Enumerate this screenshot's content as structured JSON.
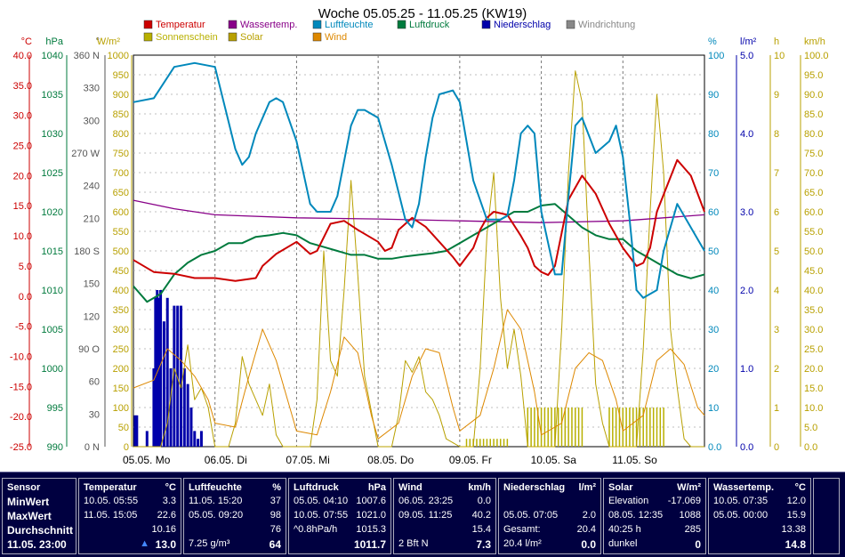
{
  "chart_data": {
    "type": "line",
    "title": "Woche 05.05.25 - 11.05.25 (KW19)",
    "x_ticks": [
      "05.05. Mo",
      "06.05. Di",
      "07.05. Mi",
      "08.05. Do",
      "09.05. Fr",
      "10.05. Sa",
      "11.05. So"
    ],
    "x_range_hours": [
      0,
      168
    ],
    "grid": true,
    "legend": [
      {
        "label": "Temperatur",
        "color": "#cc0000"
      },
      {
        "label": "Wassertemp.",
        "color": "#880088"
      },
      {
        "label": "Luftfeuchte",
        "color": "#0088bb"
      },
      {
        "label": "Luftdruck",
        "color": "#007a3d"
      },
      {
        "label": "Niederschlag",
        "color": "#0000aa"
      },
      {
        "label": "Windrichtung",
        "color": "#888888"
      },
      {
        "label": "Sonnenschein",
        "color": "#b8b000"
      },
      {
        "label": "Solar",
        "color": "#b8a000"
      },
      {
        "label": "Wind",
        "color": "#dd8800"
      }
    ],
    "axes_left": [
      {
        "unit": "°C",
        "color": "#cc0000",
        "ticks": [
          "40.0",
          "35.0",
          "30.0",
          "25.0",
          "20.0",
          "15.0",
          "10.0",
          "5.0",
          "0.0",
          "-5.0",
          "-10.0",
          "-15.0",
          "-20.0",
          "-25.0"
        ],
        "range": [
          -25,
          40
        ]
      },
      {
        "unit": "hPa",
        "color": "#007a3d",
        "ticks": [
          "1040",
          "1035",
          "1030",
          "1025",
          "1020",
          "1015",
          "1010",
          "1005",
          "1000",
          "995",
          "990"
        ],
        "range": [
          990,
          1040
        ]
      },
      {
        "unit": "°",
        "color": "#555555",
        "ticks": [
          "360 N",
          "330",
          "300",
          "270 W",
          "240",
          "210",
          "180 S",
          "150",
          "120",
          "90 O",
          "60",
          "30",
          "0 N"
        ],
        "range": [
          0,
          360
        ]
      },
      {
        "unit": "W/m²",
        "color": "#b8a000",
        "ticks": [
          "1000",
          "950",
          "900",
          "850",
          "800",
          "750",
          "700",
          "650",
          "600",
          "550",
          "500",
          "450",
          "400",
          "350",
          "300",
          "250",
          "200",
          "150",
          "100",
          "50",
          "0"
        ],
        "range": [
          0,
          1000
        ]
      }
    ],
    "axes_right": [
      {
        "unit": "%",
        "color": "#0088bb",
        "ticks": [
          "100",
          "90",
          "80",
          "70",
          "60",
          "50",
          "40",
          "30",
          "20",
          "10",
          "0.0"
        ],
        "range": [
          0,
          100
        ]
      },
      {
        "unit": "l/m²",
        "color": "#0000aa",
        "ticks": [
          "5.0",
          "4.0",
          "3.0",
          "2.0",
          "1.0",
          "0.0"
        ],
        "range": [
          0,
          5
        ]
      },
      {
        "unit": "h",
        "color": "#b8a000",
        "ticks": [
          "10",
          "9",
          "8",
          "7",
          "6",
          "5",
          "4",
          "3",
          "2",
          "1",
          "0"
        ],
        "range": [
          0,
          10
        ]
      },
      {
        "unit": "km/h",
        "color": "#b8a000",
        "ticks": [
          "100.0",
          "95.0",
          "90.0",
          "85.0",
          "80.0",
          "75.0",
          "70.0",
          "65.0",
          "60.0",
          "55.0",
          "50.0",
          "45.0",
          "40.0",
          "35.0",
          "30.0",
          "25.0",
          "20.0",
          "15.0",
          "10.0",
          "5.0",
          "0.0"
        ],
        "range": [
          0,
          100
        ]
      }
    ],
    "series": [
      {
        "name": "Temperatur",
        "unit": "°C",
        "axis": 0,
        "x": [
          0,
          6,
          12,
          18,
          24,
          30,
          36,
          38,
          42,
          48,
          52,
          54,
          58,
          62,
          66,
          72,
          74,
          76,
          78,
          82,
          86,
          90,
          94,
          96,
          100,
          102,
          104,
          106,
          110,
          114,
          116,
          118,
          120,
          122,
          124,
          128,
          132,
          136,
          140,
          144,
          148,
          150,
          152,
          154,
          160,
          164,
          168
        ],
        "y": [
          6,
          4,
          3.7,
          3,
          3,
          2.5,
          3,
          5,
          7,
          9,
          7,
          7.5,
          12,
          12.5,
          11,
          9,
          7.5,
          8,
          11,
          13,
          11.5,
          9,
          6.5,
          5,
          8,
          11,
          13,
          14,
          13.5,
          10,
          8,
          5,
          4,
          3.5,
          5,
          16,
          20,
          17,
          12,
          8,
          5,
          5.5,
          8,
          14,
          22.6,
          20,
          14
        ]
      },
      {
        "name": "Wassertemp.",
        "unit": "°C",
        "axis": 0,
        "x": [
          0,
          12,
          24,
          48,
          72,
          96,
          120,
          144,
          156,
          168
        ],
        "y": [
          15.9,
          14.5,
          13.5,
          13,
          12.8,
          12.5,
          12.2,
          12.5,
          13,
          13.5
        ]
      },
      {
        "name": "Luftfeuchte",
        "unit": "%",
        "axis": 4,
        "x": [
          0,
          6,
          12,
          18,
          24,
          30,
          32,
          34,
          36,
          40,
          42,
          44,
          48,
          52,
          54,
          58,
          60,
          64,
          66,
          68,
          70,
          72,
          76,
          80,
          82,
          84,
          86,
          88,
          90,
          94,
          96,
          100,
          104,
          108,
          110,
          112,
          114,
          116,
          118,
          120,
          124,
          126,
          128,
          130,
          132,
          136,
          140,
          142,
          144,
          146,
          148,
          150,
          154,
          156,
          160,
          164,
          168
        ],
        "y": [
          88,
          89,
          97,
          98,
          97,
          76,
          72,
          74,
          80,
          88,
          89,
          88,
          78,
          62,
          60,
          60,
          64,
          82,
          86,
          86,
          85,
          84,
          72,
          58,
          56,
          62,
          74,
          84,
          90,
          91,
          88,
          68,
          58,
          58,
          59,
          68,
          80,
          82,
          80,
          60,
          44,
          44,
          64,
          82,
          84,
          75,
          78,
          82,
          74,
          58,
          40,
          38,
          40,
          50,
          62,
          56,
          50
        ]
      },
      {
        "name": "Luftdruck",
        "unit": "hPa",
        "axis": 1,
        "x": [
          0,
          4,
          8,
          12,
          16,
          20,
          24,
          28,
          32,
          36,
          40,
          44,
          48,
          52,
          56,
          60,
          64,
          68,
          72,
          76,
          80,
          84,
          88,
          92,
          96,
          100,
          104,
          108,
          112,
          116,
          120,
          124,
          128,
          132,
          136,
          140,
          144,
          148,
          152,
          156,
          160,
          164,
          168
        ],
        "y": [
          1010.5,
          1008.5,
          1009.5,
          1012,
          1013.5,
          1014.5,
          1015,
          1016,
          1016,
          1016.8,
          1017,
          1017.3,
          1017,
          1016,
          1015.5,
          1015,
          1014.5,
          1014.5,
          1014,
          1014,
          1014.3,
          1014.5,
          1014.7,
          1015,
          1016,
          1017,
          1018,
          1019,
          1020,
          1020,
          1020.8,
          1021,
          1019.5,
          1018,
          1017,
          1016.5,
          1016.5,
          1015,
          1014,
          1013,
          1012,
          1011.5,
          1012
        ]
      },
      {
        "name": "Solar",
        "unit": "W/m²",
        "axis": 3,
        "x": [
          0,
          4,
          8,
          10,
          12,
          14,
          16,
          18,
          20,
          22,
          24,
          26,
          28,
          30,
          32,
          34,
          36,
          38,
          40,
          42,
          44,
          48,
          52,
          54,
          56,
          58,
          60,
          62,
          64,
          66,
          68,
          72,
          76,
          78,
          80,
          82,
          84,
          86,
          88,
          90,
          92,
          96,
          100,
          102,
          104,
          106,
          108,
          110,
          112,
          114,
          116,
          120,
          124,
          126,
          128,
          130,
          132,
          134,
          136,
          138,
          140,
          144,
          148,
          150,
          152,
          154,
          156,
          158,
          160,
          162,
          164,
          168
        ],
        "y": [
          0,
          0,
          0,
          60,
          200,
          150,
          260,
          120,
          150,
          100,
          0,
          0,
          0,
          60,
          230,
          160,
          120,
          80,
          160,
          30,
          0,
          0,
          0,
          120,
          500,
          220,
          180,
          400,
          680,
          440,
          180,
          0,
          0,
          80,
          220,
          190,
          230,
          140,
          120,
          80,
          20,
          0,
          0,
          200,
          540,
          700,
          380,
          200,
          300,
          180,
          0,
          0,
          0,
          300,
          700,
          960,
          880,
          500,
          160,
          60,
          0,
          0,
          0,
          250,
          600,
          900,
          700,
          300,
          150,
          20,
          0,
          0
        ]
      },
      {
        "name": "Wind",
        "unit": "km/h",
        "axis": 7,
        "x": [
          0,
          6,
          10,
          14,
          18,
          22,
          24,
          30,
          34,
          38,
          42,
          46,
          48,
          54,
          58,
          62,
          66,
          70,
          72,
          78,
          82,
          86,
          90,
          94,
          96,
          102,
          106,
          110,
          114,
          118,
          120,
          126,
          130,
          134,
          138,
          142,
          144,
          150,
          154,
          158,
          162,
          166,
          168
        ],
        "y": [
          15,
          17,
          25,
          22,
          18,
          12,
          6,
          5,
          18,
          30,
          22,
          10,
          4,
          3,
          14,
          28,
          24,
          8,
          2,
          6,
          18,
          25,
          24,
          10,
          4,
          8,
          20,
          35,
          30,
          14,
          3,
          6,
          20,
          24,
          22,
          12,
          4,
          8,
          22,
          25,
          21,
          10,
          8
        ]
      },
      {
        "name": "Sonnenschein",
        "unit": "h",
        "axis": 6,
        "x": [
          0,
          24,
          48,
          72,
          96,
          120,
          144,
          168
        ],
        "y": [
          0,
          0,
          0,
          0,
          0,
          0,
          0,
          0
        ]
      }
    ],
    "niederschlag": {
      "unit": "l/m²",
      "x": [
        0.5,
        1,
        4,
        6,
        6.5,
        7,
        7.5,
        8,
        9,
        10,
        11,
        12,
        13,
        14,
        15,
        16,
        17,
        18,
        19,
        20
      ],
      "y": [
        0.4,
        0.4,
        0.2,
        1.0,
        1.9,
        2.0,
        1.9,
        2.0,
        1.6,
        1.9,
        1.0,
        1.8,
        1.8,
        1.8,
        1.0,
        0.8,
        0.5,
        0.2,
        0.1,
        0.2
      ]
    },
    "sonnenschein_bars": {
      "unit": "h",
      "ranges": [
        [
          98,
          110
        ],
        [
          116,
          132
        ],
        [
          140,
          156
        ]
      ],
      "levels": [
        0.2,
        1.0,
        1.0
      ]
    }
  },
  "summary": {
    "sensor": {
      "header": "Sensor",
      "rows": [
        "MinWert",
        "MaxWert",
        "Durchschnitt",
        "11.05. 23:00"
      ]
    },
    "temperatur": {
      "header": "Temperatur",
      "unit": "°C",
      "min_time": "10.05. 05:55",
      "min": "3.3",
      "max_time": "11.05. 15:05",
      "max": "22.6",
      "avg": "10.16",
      "current": "13.0",
      "trend": "▲"
    },
    "luftfeuchte": {
      "header": "Luftfeuchte",
      "unit": "%",
      "min_time": "11.05. 15:20",
      "min": "37",
      "max_time": "05.05. 09:20",
      "max": "98",
      "avg": "76",
      "extra": "7.25 g/m³",
      "current": "64"
    },
    "luftdruck": {
      "header": "Luftdruck",
      "unit": "hPa",
      "min_time": "05.05. 04:10",
      "min": "1007.6",
      "max_time": "10.05. 07:55",
      "max": "1021.0",
      "extra": "^0.8hPa/h",
      "avg": "1015.3",
      "current": "1011.7"
    },
    "wind": {
      "header": "Wind",
      "unit": "km/h",
      "min_time": "06.05. 23:25",
      "min": "0.0",
      "max_time": "09.05. 11:25",
      "max": "40.2",
      "avg": "15.4",
      "extra": "2 Bft N",
      "current": "7.3"
    },
    "niederschlag": {
      "header": "Niederschlag",
      "unit": "l/m²",
      "max_time": "05.05. 07:05",
      "max": "2.0",
      "gesamt_label": "Gesamt:",
      "gesamt": "20.4",
      "extra": "20.4 l/m²",
      "current": "0.0"
    },
    "solar": {
      "header": "Solar",
      "unit": "W/m²",
      "elev_label": "Elevation",
      "elev": "-17.069",
      "max_time": "08.05. 12:35",
      "max": "1088",
      "sun_hours": "40:25 h",
      "avg": "285",
      "state": "dunkel",
      "current": "0"
    },
    "wassertemp": {
      "header": "Wassertemp.",
      "unit": "°C",
      "min_time": "10.05. 07:35",
      "min": "12.0",
      "max_time": "05.05. 00:00",
      "max": "15.9",
      "avg": "13.38",
      "current": "14.8"
    }
  }
}
